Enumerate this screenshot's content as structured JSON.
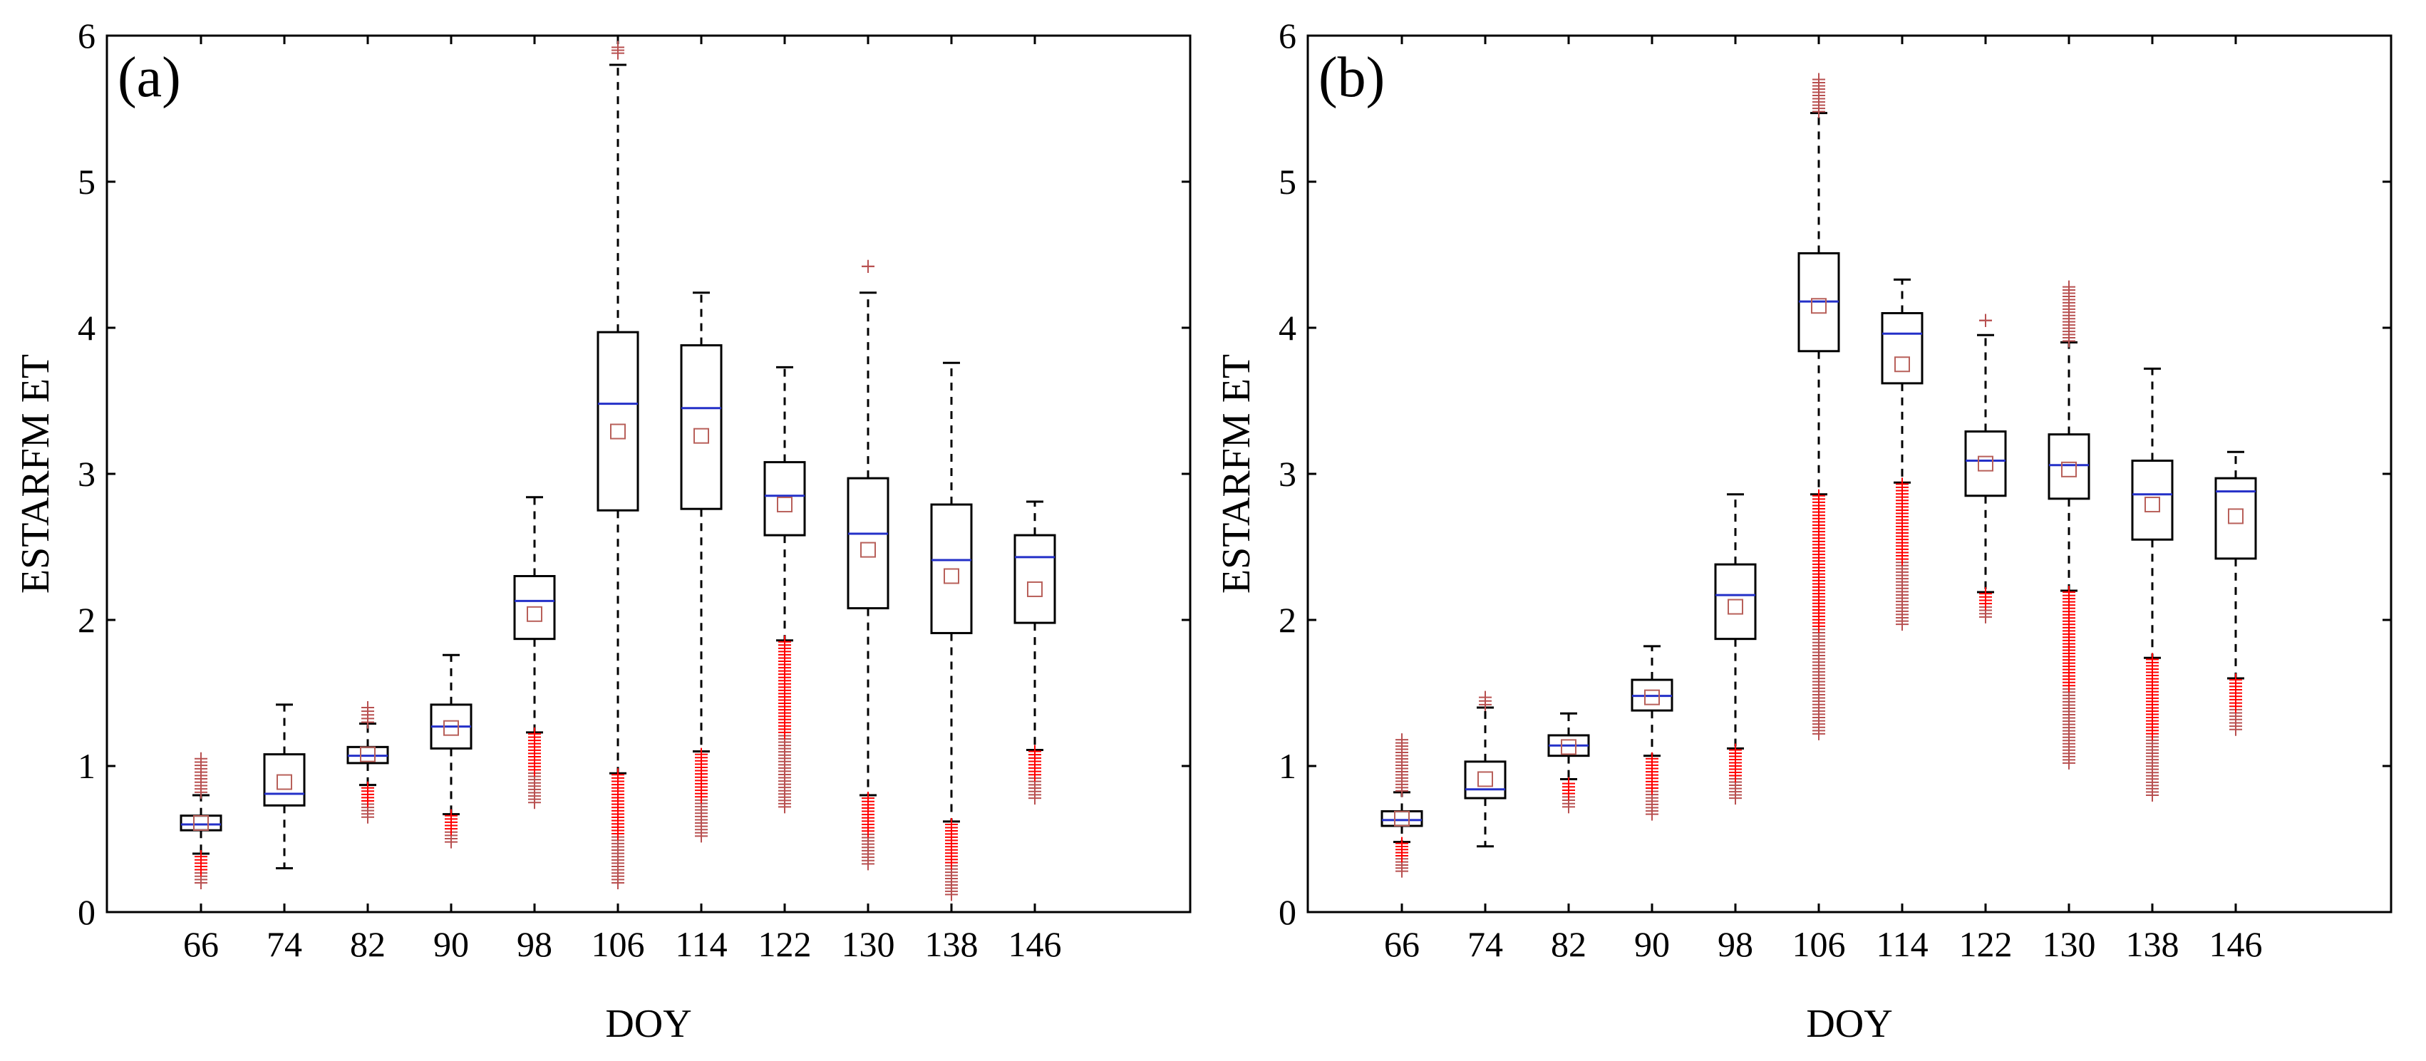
{
  "chart_data": [
    {
      "type": "box",
      "panel_tag": "(a)",
      "xlabel": "DOY",
      "ylabel": "ESTARFM ET",
      "ylim": [
        0,
        6
      ],
      "yticks": [
        "0",
        "1",
        "2",
        "3",
        "4",
        "5",
        "6"
      ],
      "categories": [
        "66",
        "74",
        "82",
        "90",
        "98",
        "106",
        "114",
        "122",
        "130",
        "138",
        "146"
      ],
      "boxes": [
        {
          "category": "66",
          "whisker_low": 0.4,
          "q1": 0.56,
          "median": 0.6,
          "q3": 0.66,
          "whisker_high": 0.8,
          "mean": 0.61,
          "outliers_low": [
            0.2,
            0.38
          ],
          "outliers_high": [
            0.82,
            1.05
          ]
        },
        {
          "category": "74",
          "whisker_low": 0.3,
          "q1": 0.73,
          "median": 0.81,
          "q3": 1.08,
          "whisker_high": 1.42,
          "mean": 0.89,
          "outliers_low": null,
          "outliers_high": null
        },
        {
          "category": "82",
          "whisker_low": 0.87,
          "q1": 1.02,
          "median": 1.07,
          "q3": 1.13,
          "whisker_high": 1.29,
          "mean": 1.08,
          "outliers_low": [
            0.65,
            0.85
          ],
          "outliers_high": [
            1.3,
            1.4
          ]
        },
        {
          "category": "90",
          "whisker_low": 0.67,
          "q1": 1.12,
          "median": 1.27,
          "q3": 1.42,
          "whisker_high": 1.76,
          "mean": 1.26,
          "outliers_low": [
            0.48,
            0.66
          ],
          "outliers_high": null
        },
        {
          "category": "98",
          "whisker_low": 1.23,
          "q1": 1.87,
          "median": 2.13,
          "q3": 2.3,
          "whisker_high": 2.84,
          "mean": 2.04,
          "outliers_low": [
            0.75,
            1.22
          ],
          "outliers_high": null
        },
        {
          "category": "106",
          "whisker_low": 0.95,
          "q1": 2.75,
          "median": 3.48,
          "q3": 3.97,
          "whisker_high": 5.8,
          "mean": 3.29,
          "outliers_low": [
            0.2,
            0.94
          ],
          "outliers_high": [
            5.88,
            5.92
          ]
        },
        {
          "category": "114",
          "whisker_low": 1.1,
          "q1": 2.76,
          "median": 3.45,
          "q3": 3.88,
          "whisker_high": 4.24,
          "mean": 3.26,
          "outliers_low": [
            0.52,
            1.08
          ],
          "outliers_high": null
        },
        {
          "category": "122",
          "whisker_low": 1.86,
          "q1": 2.58,
          "median": 2.85,
          "q3": 3.08,
          "whisker_high": 3.73,
          "mean": 2.79,
          "outliers_low": [
            0.72,
            1.85
          ],
          "outliers_high": null
        },
        {
          "category": "130",
          "whisker_low": 0.8,
          "q1": 2.08,
          "median": 2.59,
          "q3": 2.97,
          "whisker_high": 4.24,
          "mean": 2.48,
          "outliers_low": [
            0.33,
            0.78
          ],
          "outliers_high": [
            4.42,
            4.42
          ]
        },
        {
          "category": "138",
          "whisker_low": 0.62,
          "q1": 1.91,
          "median": 2.41,
          "q3": 2.79,
          "whisker_high": 3.76,
          "mean": 2.3,
          "outliers_low": [
            0.12,
            0.6
          ],
          "outliers_high": null
        },
        {
          "category": "146",
          "whisker_low": 1.11,
          "q1": 1.98,
          "median": 2.43,
          "q3": 2.58,
          "whisker_high": 2.81,
          "mean": 2.21,
          "outliers_low": [
            0.78,
            1.1
          ],
          "outliers_high": null
        }
      ]
    },
    {
      "type": "box",
      "panel_tag": "(b)",
      "xlabel": "DOY",
      "ylabel": "ESTARFM ET",
      "ylim": [
        0,
        6
      ],
      "yticks": [
        "0",
        "1",
        "2",
        "3",
        "4",
        "5",
        "6"
      ],
      "categories": [
        "66",
        "74",
        "82",
        "90",
        "98",
        "106",
        "114",
        "122",
        "130",
        "138",
        "146"
      ],
      "boxes": [
        {
          "category": "66",
          "whisker_low": 0.48,
          "q1": 0.59,
          "median": 0.63,
          "q3": 0.69,
          "whisker_high": 0.82,
          "mean": 0.64,
          "outliers_low": [
            0.28,
            0.47
          ],
          "outliers_high": [
            0.83,
            1.18
          ]
        },
        {
          "category": "74",
          "whisker_low": 0.45,
          "q1": 0.78,
          "median": 0.84,
          "q3": 1.03,
          "whisker_high": 1.4,
          "mean": 0.91,
          "outliers_low": null,
          "outliers_high": [
            1.42,
            1.47
          ]
        },
        {
          "category": "82",
          "whisker_low": 0.91,
          "q1": 1.07,
          "median": 1.14,
          "q3": 1.21,
          "whisker_high": 1.36,
          "mean": 1.13,
          "outliers_low": [
            0.72,
            0.88
          ],
          "outliers_high": null
        },
        {
          "category": "90",
          "whisker_low": 1.07,
          "q1": 1.38,
          "median": 1.48,
          "q3": 1.59,
          "whisker_high": 1.82,
          "mean": 1.47,
          "outliers_low": [
            0.67,
            1.05
          ],
          "outliers_high": null
        },
        {
          "category": "98",
          "whisker_low": 1.12,
          "q1": 1.87,
          "median": 2.17,
          "q3": 2.38,
          "whisker_high": 2.86,
          "mean": 2.09,
          "outliers_low": [
            0.78,
            1.11
          ],
          "outliers_high": null
        },
        {
          "category": "106",
          "whisker_low": 2.86,
          "q1": 3.84,
          "median": 4.18,
          "q3": 4.51,
          "whisker_high": 5.47,
          "mean": 4.15,
          "outliers_low": [
            1.22,
            2.85
          ],
          "outliers_high": [
            5.48,
            5.7
          ]
        },
        {
          "category": "114",
          "whisker_low": 2.94,
          "q1": 3.62,
          "median": 3.96,
          "q3": 4.1,
          "whisker_high": 4.33,
          "mean": 3.75,
          "outliers_low": [
            1.97,
            2.93
          ],
          "outliers_high": null
        },
        {
          "category": "122",
          "whisker_low": 2.19,
          "q1": 2.85,
          "median": 3.09,
          "q3": 3.29,
          "whisker_high": 3.95,
          "mean": 3.07,
          "outliers_low": [
            2.02,
            2.18
          ],
          "outliers_high": [
            4.05,
            4.05
          ]
        },
        {
          "category": "130",
          "whisker_low": 2.2,
          "q1": 2.83,
          "median": 3.06,
          "q3": 3.27,
          "whisker_high": 3.9,
          "mean": 3.03,
          "outliers_low": [
            1.02,
            2.19
          ],
          "outliers_high": [
            3.91,
            4.28
          ]
        },
        {
          "category": "138",
          "whisker_low": 1.74,
          "q1": 2.55,
          "median": 2.86,
          "q3": 3.09,
          "whisker_high": 3.72,
          "mean": 2.79,
          "outliers_low": [
            0.8,
            1.73
          ],
          "outliers_high": null
        },
        {
          "category": "146",
          "whisker_low": 1.6,
          "q1": 2.42,
          "median": 2.88,
          "q3": 2.97,
          "whisker_high": 3.15,
          "mean": 2.71,
          "outliers_low": [
            1.25,
            1.59
          ],
          "outliers_high": null
        }
      ]
    }
  ],
  "colors": {
    "axis": "#000000",
    "box_edge": "#000000",
    "median": "#2430c8",
    "mean_marker": "#b8605a",
    "outlier_dense": "#ff0000",
    "outlier_sparse": "#b85050",
    "whisker": "#000000"
  }
}
